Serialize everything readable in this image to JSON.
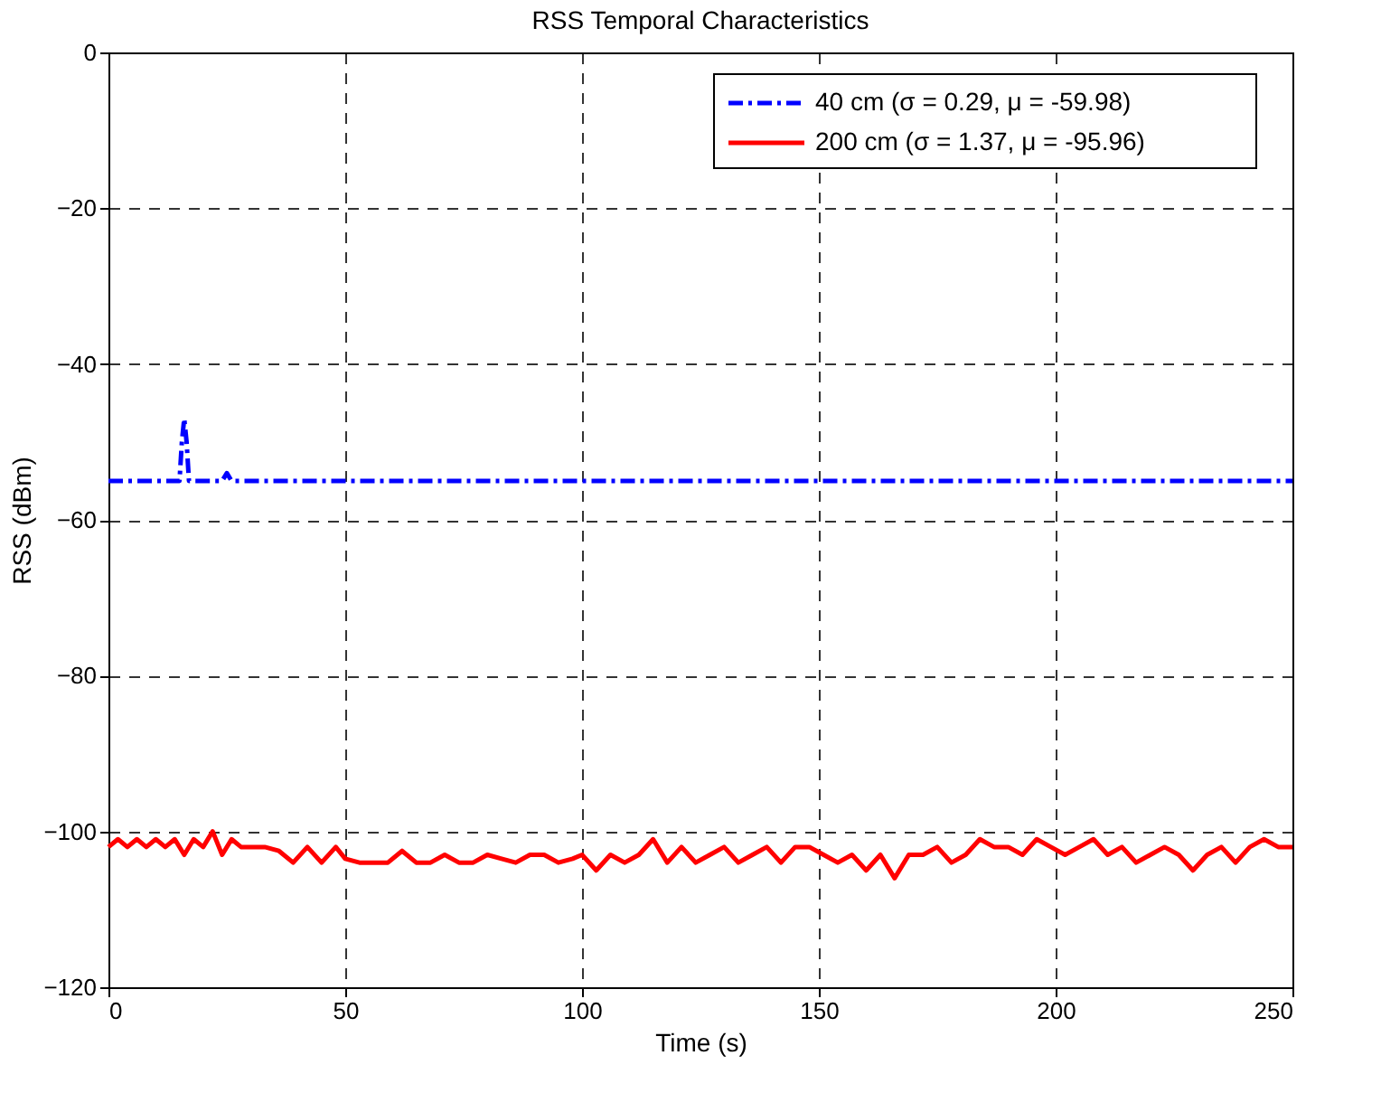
{
  "chart_data": {
    "type": "line",
    "title": "RSS Temporal Characteristics",
    "xlabel": "Time (s)",
    "ylabel": "RSS (dBm)",
    "xlim": [
      0,
      250
    ],
    "ylim": [
      -120,
      0
    ],
    "xticks": [
      0,
      50,
      100,
      150,
      200,
      250
    ],
    "yticks": [
      -120,
      -100,
      -80,
      -60,
      -40,
      -20,
      0
    ],
    "grid": true,
    "legend": "top right",
    "series": [
      {
        "name": "40 cm (σ = 0.29, μ = -59.98)",
        "color": "#0000ff",
        "line_style": "dashdot",
        "x": [
          0,
          15,
          15.5,
          16,
          16.5,
          17,
          24,
          25,
          26,
          250
        ],
        "values": [
          -55,
          -55,
          -50,
          -47,
          -50,
          -55,
          -55,
          -54,
          -55,
          -55
        ]
      },
      {
        "name": "200 cm (σ = 1.37, μ = -95.96)",
        "color": "#ff0000",
        "line_style": "solid",
        "x": [
          0,
          2,
          4,
          6,
          8,
          10,
          12,
          14,
          16,
          18,
          20,
          22,
          24,
          26,
          28,
          30,
          33,
          36,
          39,
          42,
          45,
          48,
          50,
          53,
          56,
          59,
          62,
          65,
          68,
          71,
          74,
          77,
          80,
          83,
          86,
          89,
          92,
          95,
          98,
          100,
          103,
          106,
          109,
          112,
          115,
          118,
          121,
          124,
          127,
          130,
          133,
          136,
          139,
          142,
          145,
          148,
          151,
          154,
          157,
          160,
          163,
          166,
          169,
          172,
          175,
          178,
          181,
          184,
          187,
          190,
          193,
          196,
          199,
          202,
          205,
          208,
          211,
          214,
          217,
          220,
          223,
          226,
          229,
          232,
          235,
          238,
          241,
          244,
          247,
          250
        ],
        "values": [
          -102,
          -101,
          -102,
          -101,
          -102,
          -101,
          -102,
          -101,
          -103,
          -101,
          -102,
          -100,
          -103,
          -101,
          -102,
          -102,
          -102,
          -102.5,
          -104,
          -102,
          -104,
          -102,
          -103.5,
          -104,
          -104,
          -104,
          -102.5,
          -104,
          -104,
          -103,
          -104,
          -104,
          -103,
          -103.5,
          -104,
          -103,
          -103,
          -104,
          -103.5,
          -103,
          -105,
          -103,
          -104,
          -103,
          -101,
          -104,
          -102,
          -104,
          -103,
          -102,
          -104,
          -103,
          -102,
          -104,
          -102,
          -102,
          -103,
          -104,
          -103,
          -105,
          -103,
          -106,
          -103,
          -103,
          -102,
          -104,
          -103,
          -101,
          -102,
          -102,
          -103,
          -101,
          -102,
          -103,
          -102,
          -101,
          -103,
          -102,
          -104,
          -103,
          -102,
          -103,
          -105,
          -103,
          -102,
          -104,
          -102,
          -101,
          -102,
          -102
        ]
      }
    ]
  }
}
